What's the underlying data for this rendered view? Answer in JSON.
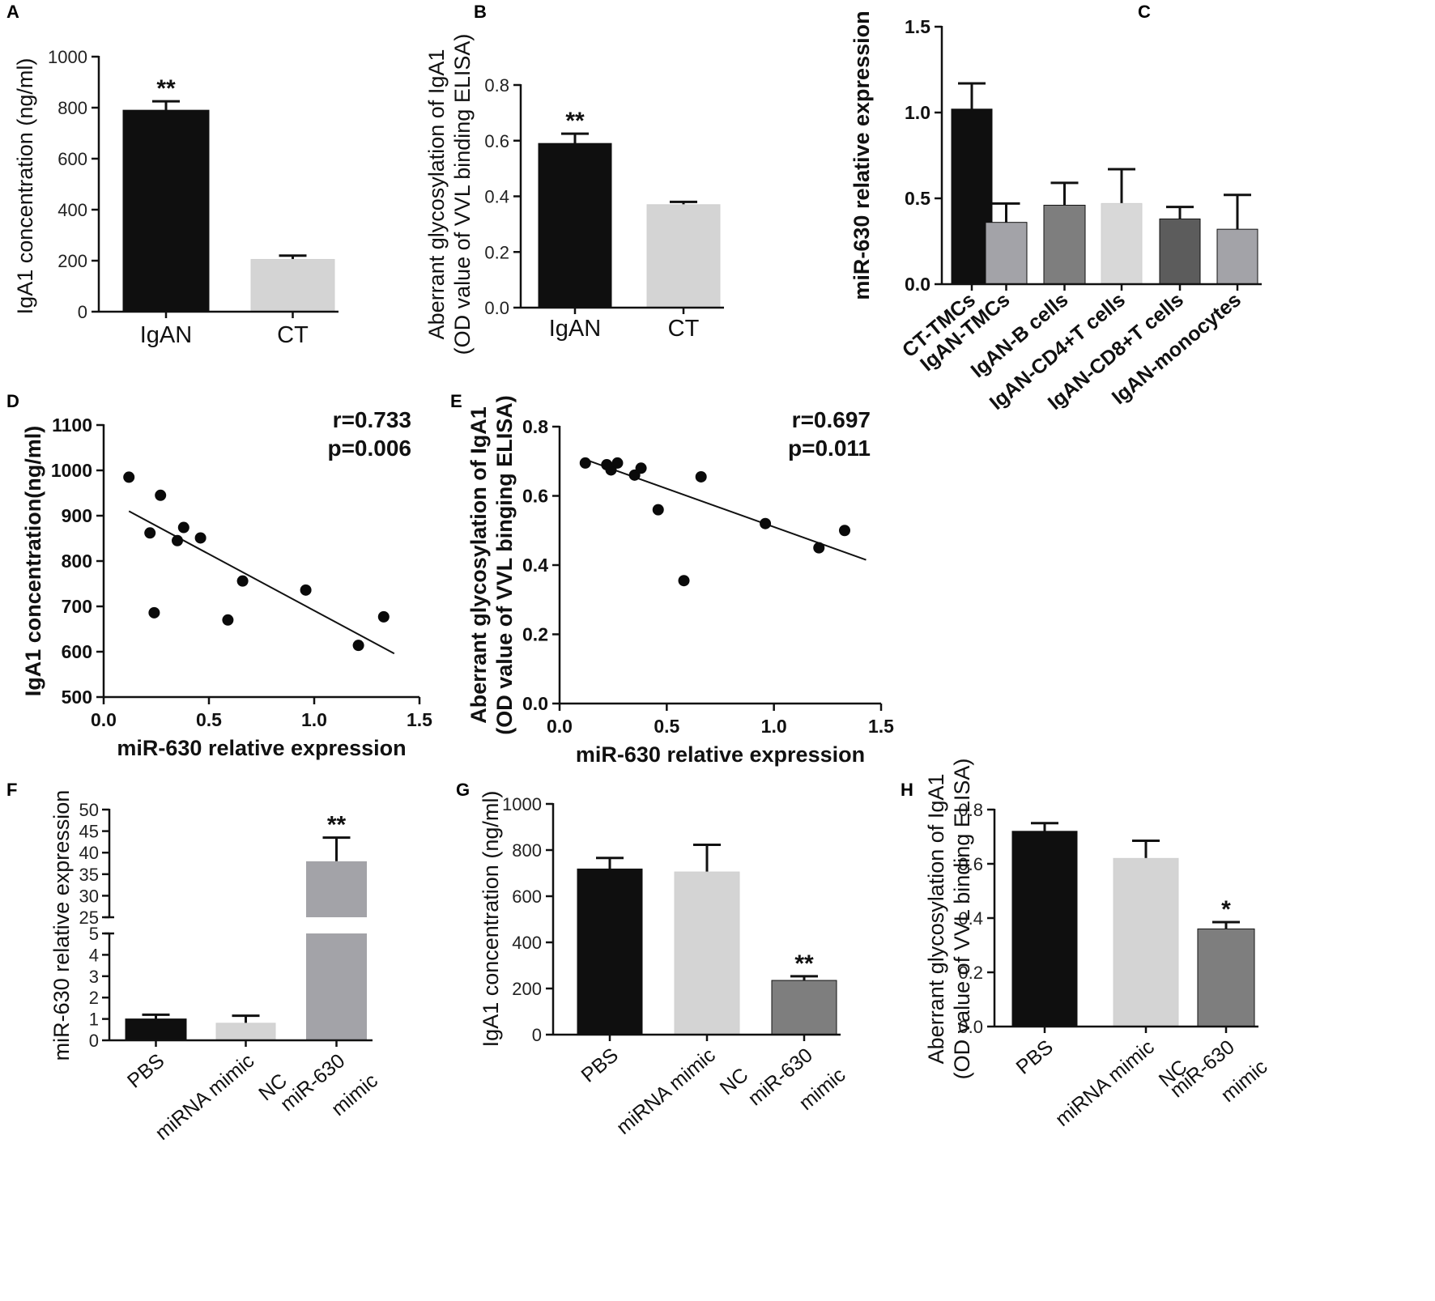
{
  "chart_data": [
    {
      "panel": "A",
      "type": "bar",
      "categories": [
        "IgAN",
        "CT"
      ],
      "values": [
        790,
        205
      ],
      "errors": [
        35,
        15
      ],
      "colors": [
        "#0f0f0f",
        "#d4d4d4"
      ],
      "ylabel": "IgA1 concentration (ng/ml)",
      "ylim": [
        0,
        1000
      ],
      "yticks": [
        "0",
        "200",
        "400",
        "600",
        "800",
        "1000"
      ],
      "significance": [
        "**",
        ""
      ]
    },
    {
      "panel": "B",
      "type": "bar",
      "categories": [
        "IgAN",
        "CT"
      ],
      "values": [
        0.59,
        0.37
      ],
      "errors": [
        0.035,
        0.01
      ],
      "colors": [
        "#0f0f0f",
        "#d4d4d4"
      ],
      "ylabel_lines": [
        "Aberrant glycosylation of IgA1",
        "(OD value of VVL binding ELISA)"
      ],
      "ylim": [
        0,
        0.8
      ],
      "yticks": [
        "0.0",
        "0.2",
        "0.4",
        "0.6",
        "0.8"
      ],
      "significance": [
        "**",
        ""
      ]
    },
    {
      "panel": "C",
      "type": "bar",
      "categories": [
        "CT-TMCs",
        "IgAN-TMCs",
        "IgAN-B cells",
        "IgAN-CD4+T cells",
        "IgAN-CD8+T cells",
        "IgAN-monocytes"
      ],
      "values": [
        1.02,
        0.36,
        0.46,
        0.47,
        0.38,
        0.32
      ],
      "errors": [
        0.15,
        0.11,
        0.13,
        0.2,
        0.07,
        0.2
      ],
      "colors": [
        "#0f0f0f",
        "#a3a3a8",
        "#7e7e7e",
        "#d8d8d8",
        "#5c5c5c",
        "#a3a3a8"
      ],
      "ylabel": "miR-630 relative expression",
      "ylim": [
        0,
        1.5
      ],
      "yticks": [
        "0.0",
        "0.5",
        "1.0",
        "1.5"
      ]
    },
    {
      "panel": "D",
      "type": "scatter",
      "points": [
        [
          0.12,
          985
        ],
        [
          0.22,
          862
        ],
        [
          0.24,
          686
        ],
        [
          0.27,
          945
        ],
        [
          0.35,
          845
        ],
        [
          0.38,
          874
        ],
        [
          0.46,
          851
        ],
        [
          0.59,
          670
        ],
        [
          0.66,
          756
        ],
        [
          0.96,
          736
        ],
        [
          1.21,
          614
        ],
        [
          1.33,
          677
        ]
      ],
      "fit": [
        [
          0.12,
          910
        ],
        [
          1.38,
          596
        ]
      ],
      "xlabel": "miR-630 relative expression",
      "ylabel": "IgA1 concentration(ng/ml)",
      "xlim": [
        0,
        1.5
      ],
      "ylim": [
        500,
        1100
      ],
      "xticks": [
        "0.0",
        "0.5",
        "1.0",
        "1.5"
      ],
      "yticks": [
        "500",
        "600",
        "700",
        "800",
        "900",
        "1000",
        "1100"
      ],
      "annotation": [
        "r=0.733",
        "p=0.006"
      ]
    },
    {
      "panel": "E",
      "type": "scatter",
      "points": [
        [
          0.12,
          0.695
        ],
        [
          0.22,
          0.69
        ],
        [
          0.24,
          0.675
        ],
        [
          0.27,
          0.695
        ],
        [
          0.35,
          0.66
        ],
        [
          0.38,
          0.68
        ],
        [
          0.46,
          0.56
        ],
        [
          0.58,
          0.355
        ],
        [
          0.66,
          0.655
        ],
        [
          0.96,
          0.52
        ],
        [
          1.21,
          0.45
        ],
        [
          1.33,
          0.5
        ]
      ],
      "fit": [
        [
          0.12,
          0.705
        ],
        [
          1.43,
          0.415
        ]
      ],
      "xlabel": "miR-630 relative expression",
      "ylabel_lines": [
        "Aberrant glycosylation of IgA1",
        "(OD value of VVL binging ELISA)"
      ],
      "xlim": [
        0,
        1.5
      ],
      "ylim": [
        0,
        0.8
      ],
      "xticks": [
        "0.0",
        "0.5",
        "1.0",
        "1.5"
      ],
      "yticks": [
        "0.0",
        "0.2",
        "0.4",
        "0.6",
        "0.8"
      ],
      "annotation": [
        "r=0.697",
        "p=0.011"
      ]
    },
    {
      "panel": "F",
      "type": "bar",
      "broken_axis": true,
      "categories": [
        [
          "PBS"
        ],
        [
          "miRNA mimic",
          "NC"
        ],
        [
          "miR-630",
          "mimic"
        ]
      ],
      "values": [
        1.0,
        0.8,
        38
      ],
      "errors": [
        0.2,
        0.35,
        5.5
      ],
      "colors": [
        "#0f0f0f",
        "#d4d4d4",
        "#a3a3a8"
      ],
      "ylabel": "miR-630 relative expression",
      "lower_ylim": [
        0,
        5
      ],
      "upper_ylim": [
        25,
        50
      ],
      "lower_yticks": [
        "0",
        "1",
        "2",
        "3",
        "4",
        "5"
      ],
      "upper_yticks": [
        "25",
        "30",
        "35",
        "40",
        "45",
        "50"
      ],
      "significance": [
        "",
        "",
        "**"
      ]
    },
    {
      "panel": "G",
      "type": "bar",
      "categories": [
        [
          "PBS"
        ],
        [
          "miRNA mimic",
          "NC"
        ],
        [
          "miR-630",
          "mimic"
        ]
      ],
      "values": [
        718,
        705,
        235
      ],
      "errors": [
        48,
        118,
        18
      ],
      "colors": [
        "#0f0f0f",
        "#d4d4d4",
        "#7e7e7e"
      ],
      "ylabel": "IgA1 concentration (ng/ml)",
      "ylim": [
        0,
        1000
      ],
      "yticks": [
        "0",
        "200",
        "400",
        "600",
        "800",
        "1000"
      ],
      "significance": [
        "",
        "",
        "**"
      ]
    },
    {
      "panel": "H",
      "type": "bar",
      "categories": [
        [
          "PBS"
        ],
        [
          "miRNA mimic",
          "NC"
        ],
        [
          "miR-630",
          "mimic"
        ]
      ],
      "values": [
        0.72,
        0.62,
        0.36
      ],
      "errors": [
        0.03,
        0.065,
        0.025
      ],
      "colors": [
        "#0f0f0f",
        "#d4d4d4",
        "#7e7e7e"
      ],
      "ylabel_lines": [
        "Aberrant glycosylation of IgA1",
        "(OD value of VVL binding ELISA)"
      ],
      "ylim": [
        0,
        0.8
      ],
      "yticks": [
        "0.0",
        "0.2",
        "0.4",
        "0.6",
        "0.8"
      ],
      "significance": [
        "",
        "",
        "*"
      ]
    }
  ]
}
